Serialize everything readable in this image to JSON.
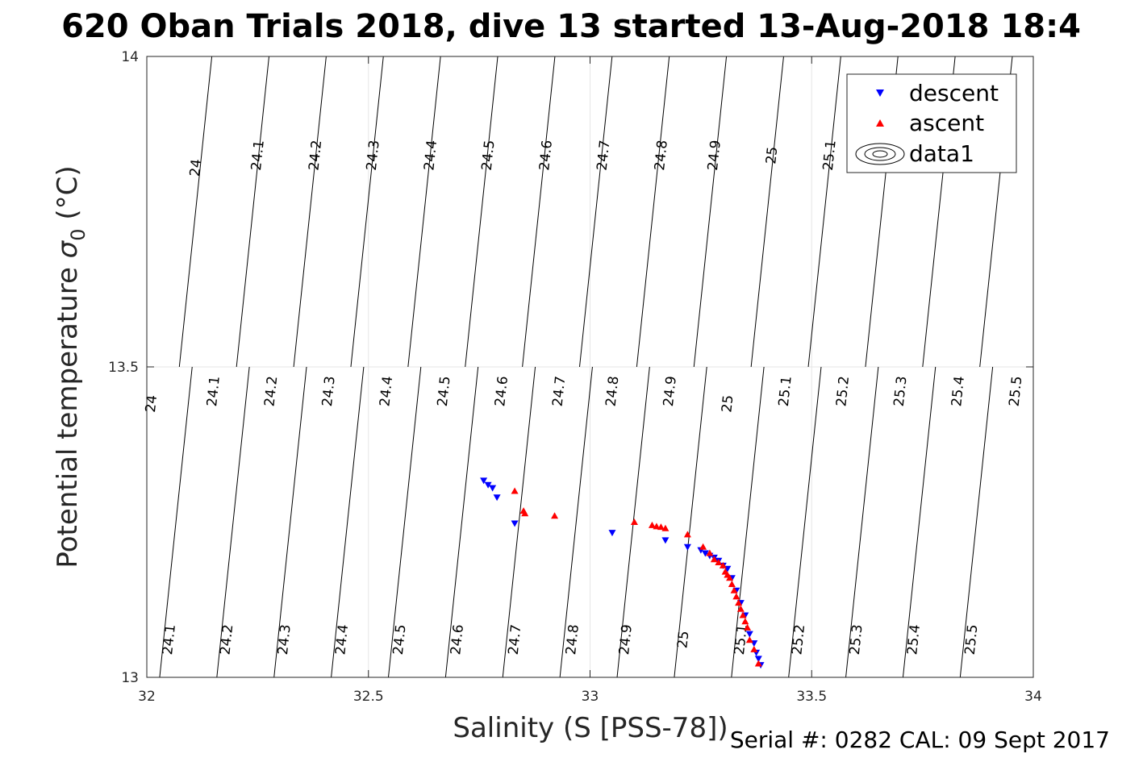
{
  "title": "620 Oban Trials 2018, dive 13 started 13-Aug-2018 18:4",
  "footer": "Serial #: 0282  CAL: 09 Sept 2017",
  "chart_data": {
    "type": "scatter",
    "title": "620 Oban Trials 2018, dive 13 started 13-Aug-2018 18:4",
    "xlabel": "Salinity (S [PSS-78])",
    "ylabel_main": "Potential temperature ",
    "ylabel_sigma": "σ",
    "ylabel_sub": "0",
    "ylabel_unit": " (°C)",
    "xlim": [
      32,
      34
    ],
    "ylim": [
      13,
      14
    ],
    "xticks": [
      32,
      32.5,
      33,
      33.5,
      34
    ],
    "xtick_labels": [
      "32",
      "32.5",
      "33",
      "33.5",
      "34"
    ],
    "yticks": [
      13,
      13.5,
      14
    ],
    "ytick_labels": [
      "13",
      "13.5",
      "14"
    ],
    "grid": true,
    "legend_position": "top-right",
    "legend": [
      "descent",
      "ascent",
      "data1"
    ],
    "colors": {
      "descent": "#0000ff",
      "ascent": "#ff0000",
      "contour": "#000000",
      "grid": "#e6e6e6"
    },
    "contour_levels": [
      24.0,
      24.1,
      24.2,
      24.3,
      24.4,
      24.5,
      24.6,
      24.7,
      24.8,
      24.9,
      25.0,
      25.1,
      25.2,
      25.3,
      25.4,
      25.5
    ],
    "contour_labels": [
      {
        "text": "24",
        "x": 32.12,
        "y": 13.82
      },
      {
        "text": "24.1",
        "x": 32.26,
        "y": 13.84
      },
      {
        "text": "24.2",
        "x": 32.39,
        "y": 13.84
      },
      {
        "text": "24.3",
        "x": 32.52,
        "y": 13.84
      },
      {
        "text": "24.4",
        "x": 32.65,
        "y": 13.84
      },
      {
        "text": "24.5",
        "x": 32.78,
        "y": 13.84
      },
      {
        "text": "24.6",
        "x": 32.91,
        "y": 13.84
      },
      {
        "text": "24.7",
        "x": 33.04,
        "y": 13.84
      },
      {
        "text": "24.8",
        "x": 33.17,
        "y": 13.84
      },
      {
        "text": "24.9",
        "x": 33.29,
        "y": 13.84
      },
      {
        "text": "25",
        "x": 33.42,
        "y": 13.84
      },
      {
        "text": "25.1",
        "x": 33.55,
        "y": 13.84
      },
      {
        "text": "24",
        "x": 32.02,
        "y": 13.44
      },
      {
        "text": "24.1",
        "x": 32.16,
        "y": 13.46
      },
      {
        "text": "24.2",
        "x": 32.29,
        "y": 13.46
      },
      {
        "text": "24.3",
        "x": 32.42,
        "y": 13.46
      },
      {
        "text": "24.4",
        "x": 32.55,
        "y": 13.46
      },
      {
        "text": "24.5",
        "x": 32.68,
        "y": 13.46
      },
      {
        "text": "24.6",
        "x": 32.81,
        "y": 13.46
      },
      {
        "text": "24.7",
        "x": 32.94,
        "y": 13.46
      },
      {
        "text": "24.8",
        "x": 33.06,
        "y": 13.46
      },
      {
        "text": "24.9",
        "x": 33.19,
        "y": 13.46
      },
      {
        "text": "25",
        "x": 33.32,
        "y": 13.44
      },
      {
        "text": "25.1",
        "x": 33.45,
        "y": 13.46
      },
      {
        "text": "25.2",
        "x": 33.58,
        "y": 13.46
      },
      {
        "text": "25.3",
        "x": 33.71,
        "y": 13.46
      },
      {
        "text": "25.4",
        "x": 33.84,
        "y": 13.46
      },
      {
        "text": "25.5",
        "x": 33.97,
        "y": 13.46
      },
      {
        "text": "24.1",
        "x": 32.06,
        "y": 13.06
      },
      {
        "text": "24.2",
        "x": 32.19,
        "y": 13.06
      },
      {
        "text": "24.3",
        "x": 32.32,
        "y": 13.06
      },
      {
        "text": "24.4",
        "x": 32.45,
        "y": 13.06
      },
      {
        "text": "24.5",
        "x": 32.58,
        "y": 13.06
      },
      {
        "text": "24.6",
        "x": 32.71,
        "y": 13.06
      },
      {
        "text": "24.7",
        "x": 32.84,
        "y": 13.06
      },
      {
        "text": "24.8",
        "x": 32.97,
        "y": 13.06
      },
      {
        "text": "24.9",
        "x": 33.09,
        "y": 13.06
      },
      {
        "text": "25",
        "x": 33.22,
        "y": 13.06
      },
      {
        "text": "25.1",
        "x": 33.35,
        "y": 13.06
      },
      {
        "text": "25.2",
        "x": 33.48,
        "y": 13.06
      },
      {
        "text": "25.3",
        "x": 33.61,
        "y": 13.06
      },
      {
        "text": "25.4",
        "x": 33.74,
        "y": 13.06
      },
      {
        "text": "25.5",
        "x": 33.87,
        "y": 13.06
      }
    ],
    "series": [
      {
        "name": "descent",
        "marker": "triangle-down",
        "points": [
          [
            32.76,
            13.317
          ],
          [
            32.77,
            13.31
          ],
          [
            32.78,
            13.305
          ],
          [
            32.79,
            13.29
          ],
          [
            32.83,
            13.248
          ],
          [
            33.05,
            13.233
          ],
          [
            33.17,
            13.221
          ],
          [
            33.22,
            13.21
          ],
          [
            33.25,
            13.205
          ],
          [
            33.26,
            13.2
          ],
          [
            33.27,
            13.196
          ],
          [
            33.28,
            13.193
          ],
          [
            33.29,
            13.188
          ],
          [
            33.3,
            13.18
          ],
          [
            33.31,
            13.175
          ],
          [
            33.32,
            13.16
          ],
          [
            33.33,
            13.14
          ],
          [
            33.34,
            13.12
          ],
          [
            33.35,
            13.1
          ],
          [
            33.36,
            13.07
          ],
          [
            33.37,
            13.055
          ],
          [
            33.375,
            13.04
          ],
          [
            33.38,
            13.03
          ],
          [
            33.385,
            13.02
          ]
        ]
      },
      {
        "name": "ascent",
        "marker": "triangle-up",
        "points": [
          [
            32.83,
            13.3
          ],
          [
            32.85,
            13.268
          ],
          [
            32.853,
            13.264
          ],
          [
            32.92,
            13.26
          ],
          [
            33.1,
            13.25
          ],
          [
            33.14,
            13.245
          ],
          [
            33.15,
            13.243
          ],
          [
            33.16,
            13.242
          ],
          [
            33.17,
            13.24
          ],
          [
            33.22,
            13.23
          ],
          [
            33.255,
            13.21
          ],
          [
            33.27,
            13.2
          ],
          [
            33.28,
            13.19
          ],
          [
            33.29,
            13.185
          ],
          [
            33.3,
            13.18
          ],
          [
            33.305,
            13.17
          ],
          [
            33.31,
            13.165
          ],
          [
            33.315,
            13.16
          ],
          [
            33.32,
            13.15
          ],
          [
            33.325,
            13.14
          ],
          [
            33.33,
            13.13
          ],
          [
            33.335,
            13.12
          ],
          [
            33.34,
            13.11
          ],
          [
            33.345,
            13.1
          ],
          [
            33.35,
            13.09
          ],
          [
            33.355,
            13.08
          ],
          [
            33.36,
            13.06
          ],
          [
            33.37,
            13.045
          ],
          [
            33.38,
            13.022
          ]
        ]
      }
    ]
  }
}
